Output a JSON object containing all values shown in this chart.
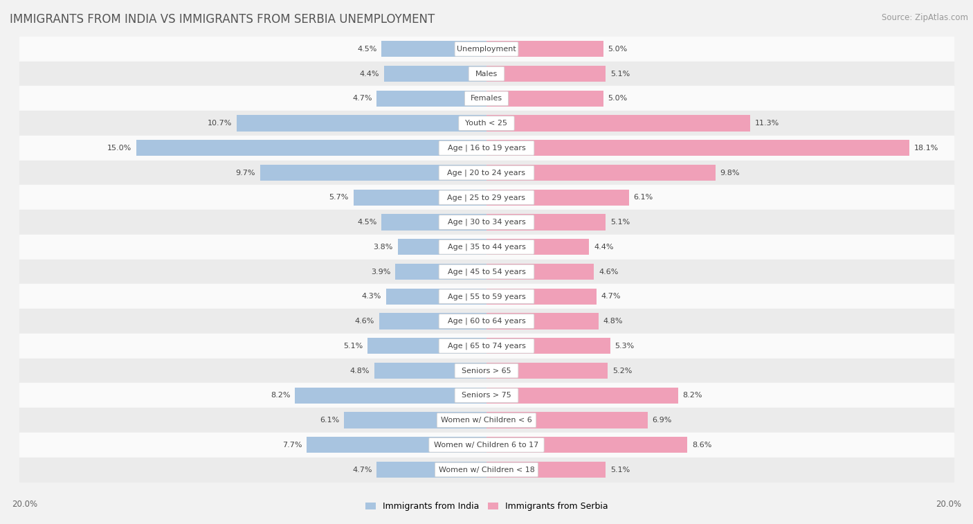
{
  "title": "IMMIGRANTS FROM INDIA VS IMMIGRANTS FROM SERBIA UNEMPLOYMENT",
  "source": "Source: ZipAtlas.com",
  "categories": [
    "Unemployment",
    "Males",
    "Females",
    "Youth < 25",
    "Age | 16 to 19 years",
    "Age | 20 to 24 years",
    "Age | 25 to 29 years",
    "Age | 30 to 34 years",
    "Age | 35 to 44 years",
    "Age | 45 to 54 years",
    "Age | 55 to 59 years",
    "Age | 60 to 64 years",
    "Age | 65 to 74 years",
    "Seniors > 65",
    "Seniors > 75",
    "Women w/ Children < 6",
    "Women w/ Children 6 to 17",
    "Women w/ Children < 18"
  ],
  "india_values": [
    4.5,
    4.4,
    4.7,
    10.7,
    15.0,
    9.7,
    5.7,
    4.5,
    3.8,
    3.9,
    4.3,
    4.6,
    5.1,
    4.8,
    8.2,
    6.1,
    7.7,
    4.7
  ],
  "serbia_values": [
    5.0,
    5.1,
    5.0,
    11.3,
    18.1,
    9.8,
    6.1,
    5.1,
    4.4,
    4.6,
    4.7,
    4.8,
    5.3,
    5.2,
    8.2,
    6.9,
    8.6,
    5.1
  ],
  "india_color": "#a8c4e0",
  "serbia_color": "#f0a0b8",
  "bg_color": "#f2f2f2",
  "row_bg_light": "#fafafa",
  "row_bg_dark": "#ebebeb",
  "max_value": 20.0,
  "legend_india": "Immigrants from India",
  "legend_serbia": "Immigrants from Serbia",
  "title_fontsize": 12,
  "source_fontsize": 8.5,
  "bar_label_fontsize": 8,
  "category_fontsize": 8
}
